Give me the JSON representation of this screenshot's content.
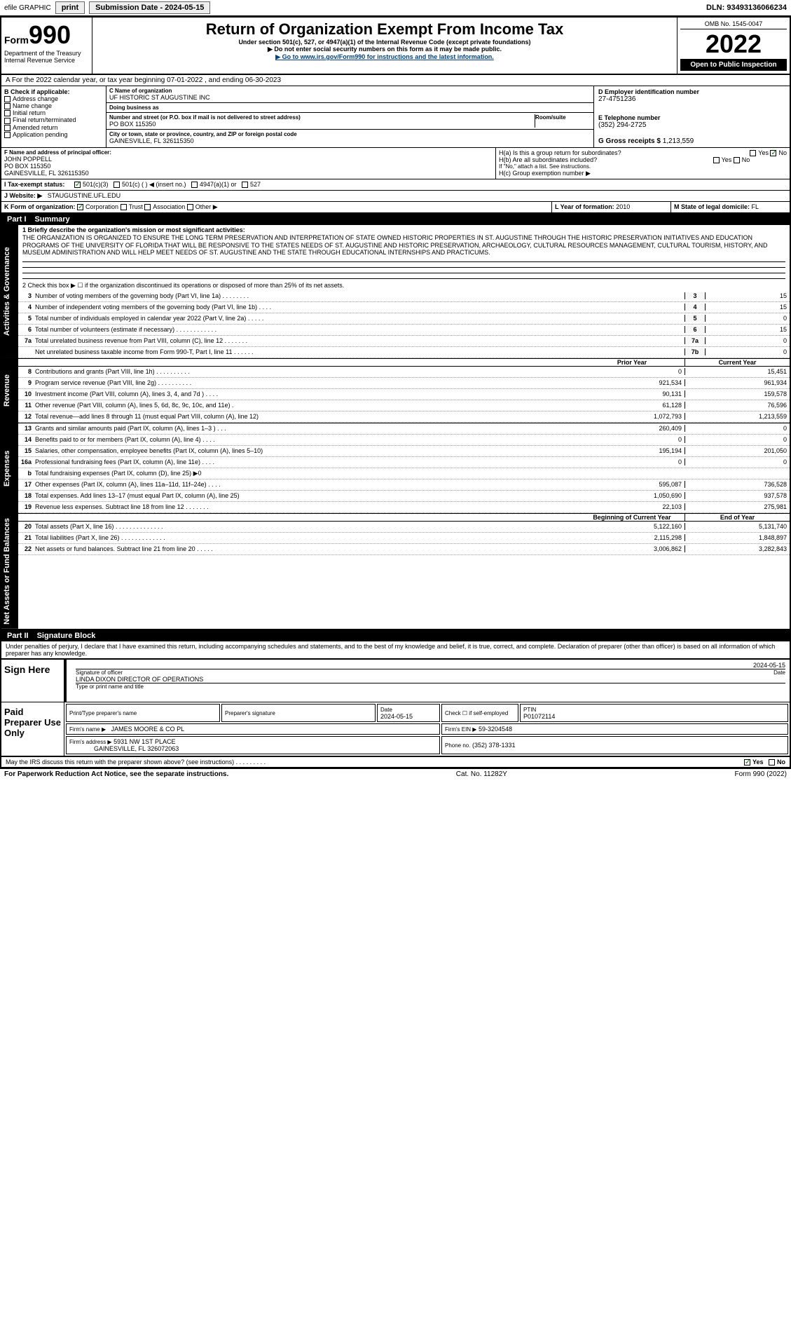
{
  "topbar": {
    "efile": "efile GRAPHIC",
    "print": "print",
    "subdate_label": "Submission Date - 2024-05-15",
    "dln_label": "DLN: 93493136066234"
  },
  "header": {
    "form_small": "Form",
    "form_num": "990",
    "dept": "Department of the Treasury",
    "irs": "Internal Revenue Service",
    "main_title": "Return of Organization Exempt From Income Tax",
    "sub1": "Under section 501(c), 527, or 4947(a)(1) of the Internal Revenue Code (except private foundations)",
    "caution": "▶ Do not enter social security numbers on this form as it may be made public.",
    "goto": "▶ Go to www.irs.gov/Form990 for instructions and the latest information.",
    "omb": "OMB No. 1545-0047",
    "year": "2022",
    "open": "Open to Public Inspection"
  },
  "period": {
    "text": "A For the 2022 calendar year, or tax year beginning 07-01-2022   , and ending 06-30-2023"
  },
  "boxB": {
    "label": "B Check if applicable:",
    "items": [
      "Address change",
      "Name change",
      "Initial return",
      "Final return/terminated",
      "Amended return",
      "Application pending"
    ]
  },
  "boxC": {
    "name_label": "C Name of organization",
    "name": "UF HISTORIC ST AUGUSTINE INC",
    "dba_label": "Doing business as",
    "dba": "",
    "street_label": "Number and street (or P.O. box if mail is not delivered to street address)",
    "street": "PO BOX 115350",
    "room_label": "Room/suite",
    "city_label": "City or town, state or province, country, and ZIP or foreign postal code",
    "city": "GAINESVILLE, FL  326115350"
  },
  "boxD": {
    "label": "D Employer identification number",
    "val": "27-4751236"
  },
  "boxE": {
    "label": "E Telephone number",
    "val": "(352) 294-2725"
  },
  "boxG": {
    "label": "G Gross receipts $",
    "val": "1,213,559"
  },
  "boxF": {
    "label": "F  Name and address of principal officer:",
    "name": "JOHN POPPELL",
    "addr1": "PO BOX 115350",
    "addr2": "GAINESVILLE, FL  326115350"
  },
  "boxH": {
    "a": "H(a)  Is this a group return for subordinates?",
    "b": "H(b)  Are all subordinates included?",
    "note": "If \"No,\" attach a list. See instructions.",
    "c": "H(c)  Group exemption number ▶",
    "yes": "Yes",
    "no": "No"
  },
  "boxI": {
    "label": "I  Tax-exempt status:",
    "o1": "501(c)(3)",
    "o2": "501(c) (   ) ◀ (insert no.)",
    "o3": "4947(a)(1) or",
    "o4": "527"
  },
  "boxJ": {
    "label": "J  Website: ▶",
    "val": "STAUGUSTINE.UFL.EDU"
  },
  "boxK": {
    "label": "K Form of organization:",
    "o1": "Corporation",
    "o2": "Trust",
    "o3": "Association",
    "o4": "Other ▶"
  },
  "boxL": {
    "label": "L Year of formation:",
    "val": "2010"
  },
  "boxM": {
    "label": "M State of legal domicile:",
    "val": "FL"
  },
  "partI": {
    "title": "Part I",
    "sub": "Summary"
  },
  "mission": {
    "label": "1   Briefly describe the organization's mission or most significant activities:",
    "text": "THE ORGANIZATION IS ORGANIZED TO ENSURE THE LONG TERM PRESERVATION AND INTERPRETATION OF STATE OWNED HISTORIC PROPERTIES IN ST. AUGUSTINE THROUGH THE HISTORIC PRESERVATION INITIATIVES AND EDUCATION PROGRAMS OF THE UNIVERSITY OF FLORIDA THAT WILL BE RESPONSIVE TO THE STATES NEEDS OF ST. AUGUSTINE AND HISTORIC PRESERVATION, ARCHAEOLOGY, CULTURAL RESOURCES MANAGEMENT, CULTURAL TOURISM, HISTORY, AND MUSEUM ADMINISTRATION AND WILL HELP MEET NEEDS OF ST. AUGUSTINE AND THE STATE THROUGH EDUCATIONAL INTERNSHIPS AND PRACTICUMS."
  },
  "line2": "2   Check this box ▶ ☐ if the organization discontinued its operations or disposed of more than 25% of its net assets.",
  "tabs": {
    "ag": "Activities & Governance",
    "rev": "Revenue",
    "exp": "Expenses",
    "na": "Net Assets or Fund Balances"
  },
  "gov_lines": [
    {
      "n": "3",
      "t": "Number of voting members of the governing body (Part VI, line 1a)   .   .   .   .   .   .   .   .",
      "b": "3",
      "v": "15"
    },
    {
      "n": "4",
      "t": "Number of independent voting members of the governing body (Part VI, line 1b)   .   .   .   .",
      "b": "4",
      "v": "15"
    },
    {
      "n": "5",
      "t": "Total number of individuals employed in calendar year 2022 (Part V, line 2a)   .   .   .   .   .",
      "b": "5",
      "v": "0"
    },
    {
      "n": "6",
      "t": "Total number of volunteers (estimate if necessary)   .   .   .   .   .   .   .   .   .   .   .   .",
      "b": "6",
      "v": "15"
    },
    {
      "n": "7a",
      "t": "Total unrelated business revenue from Part VIII, column (C), line 12   .   .   .   .   .   .   .",
      "b": "7a",
      "v": "0"
    },
    {
      "n": "",
      "t": "Net unrelated business taxable income from Form 990-T, Part I, line 11   .   .   .   .   .   .",
      "b": "7b",
      "v": "0"
    }
  ],
  "colhdr": {
    "prior": "Prior Year",
    "curr": "Current Year"
  },
  "rev_lines": [
    {
      "n": "8",
      "t": "Contributions and grants (Part VIII, line 1h)   .   .   .   .   .   .   .   .   .   .",
      "p": "0",
      "c": "15,451"
    },
    {
      "n": "9",
      "t": "Program service revenue (Part VIII, line 2g)   .   .   .   .   .   .   .   .   .   .",
      "p": "921,534",
      "c": "961,934"
    },
    {
      "n": "10",
      "t": "Investment income (Part VIII, column (A), lines 3, 4, and 7d )   .   .   .   .",
      "p": "90,131",
      "c": "159,578"
    },
    {
      "n": "11",
      "t": "Other revenue (Part VIII, column (A), lines 5, 6d, 8c, 9c, 10c, and 11e)   .",
      "p": "61,128",
      "c": "76,596"
    },
    {
      "n": "12",
      "t": "Total revenue—add lines 8 through 11 (must equal Part VIII, column (A), line 12)",
      "p": "1,072,793",
      "c": "1,213,559"
    }
  ],
  "exp_lines": [
    {
      "n": "13",
      "t": "Grants and similar amounts paid (Part IX, column (A), lines 1–3 )   .   .   .",
      "p": "260,409",
      "c": "0"
    },
    {
      "n": "14",
      "t": "Benefits paid to or for members (Part IX, column (A), line 4)   .   .   .   .",
      "p": "0",
      "c": "0"
    },
    {
      "n": "15",
      "t": "Salaries, other compensation, employee benefits (Part IX, column (A), lines 5–10)",
      "p": "195,194",
      "c": "201,050"
    },
    {
      "n": "16a",
      "t": "Professional fundraising fees (Part IX, column (A), line 11e)   .   .   .   .",
      "p": "0",
      "c": "0"
    },
    {
      "n": "b",
      "t": "Total fundraising expenses (Part IX, column (D), line 25) ▶0",
      "p": "",
      "c": "",
      "shade": true
    },
    {
      "n": "17",
      "t": "Other expenses (Part IX, column (A), lines 11a–11d, 11f–24e)   .   .   .   .",
      "p": "595,087",
      "c": "736,528"
    },
    {
      "n": "18",
      "t": "Total expenses. Add lines 13–17 (must equal Part IX, column (A), line 25)",
      "p": "1,050,690",
      "c": "937,578"
    },
    {
      "n": "19",
      "t": "Revenue less expenses. Subtract line 18 from line 12   .   .   .   .   .   .   .",
      "p": "22,103",
      "c": "275,981"
    }
  ],
  "na_hdr": {
    "beg": "Beginning of Current Year",
    "end": "End of Year"
  },
  "na_lines": [
    {
      "n": "20",
      "t": "Total assets (Part X, line 16)   .   .   .   .   .   .   .   .   .   .   .   .   .   .",
      "p": "5,122,160",
      "c": "5,131,740"
    },
    {
      "n": "21",
      "t": "Total liabilities (Part X, line 26)   .   .   .   .   .   .   .   .   .   .   .   .   .",
      "p": "2,115,298",
      "c": "1,848,897"
    },
    {
      "n": "22",
      "t": "Net assets or fund balances. Subtract line 21 from line 20   .   .   .   .   .",
      "p": "3,006,862",
      "c": "3,282,843"
    }
  ],
  "partII": {
    "title": "Part II",
    "sub": "Signature Block"
  },
  "sig_decl": "Under penalties of perjury, I declare that I have examined this return, including accompanying schedules and statements, and to the best of my knowledge and belief, it is true, correct, and complete. Declaration of preparer (other than officer) is based on all information of which preparer has any knowledge.",
  "sig": {
    "here": "Sign Here",
    "sig_off": "Signature of officer",
    "date_label": "Date",
    "date": "2024-05-15",
    "typed": "LINDA DIXON  DIRECTOR OF OPERATIONS",
    "typed_label": "Type or print name and title"
  },
  "paid": {
    "label": "Paid Preparer Use Only",
    "c1": "Print/Type preparer's name",
    "c2": "Preparer's signature",
    "c3": "Date",
    "c3v": "2024-05-15",
    "c4": "Check ☐ if self-employed",
    "c5": "PTIN",
    "c5v": "P01072114",
    "firm_label": "Firm's name    ▶",
    "firm": "JAMES MOORE & CO PL",
    "ein_label": "Firm's EIN ▶",
    "ein": "59-3204548",
    "addr_label": "Firm's address ▶",
    "addr1": "5931 NW 1ST PLACE",
    "addr2": "GAINESVILLE, FL  326072063",
    "phone_label": "Phone no.",
    "phone": "(352) 378-1331"
  },
  "may_irs": "May the IRS discuss this return with the preparer shown above? (see instructions)   .   .   .   .   .   .   .   .   .",
  "yesno": {
    "yes": "Yes",
    "no": "No"
  },
  "footer": {
    "pra": "For Paperwork Reduction Act Notice, see the separate instructions.",
    "cat": "Cat. No. 11282Y",
    "form": "Form 990 (2022)"
  }
}
